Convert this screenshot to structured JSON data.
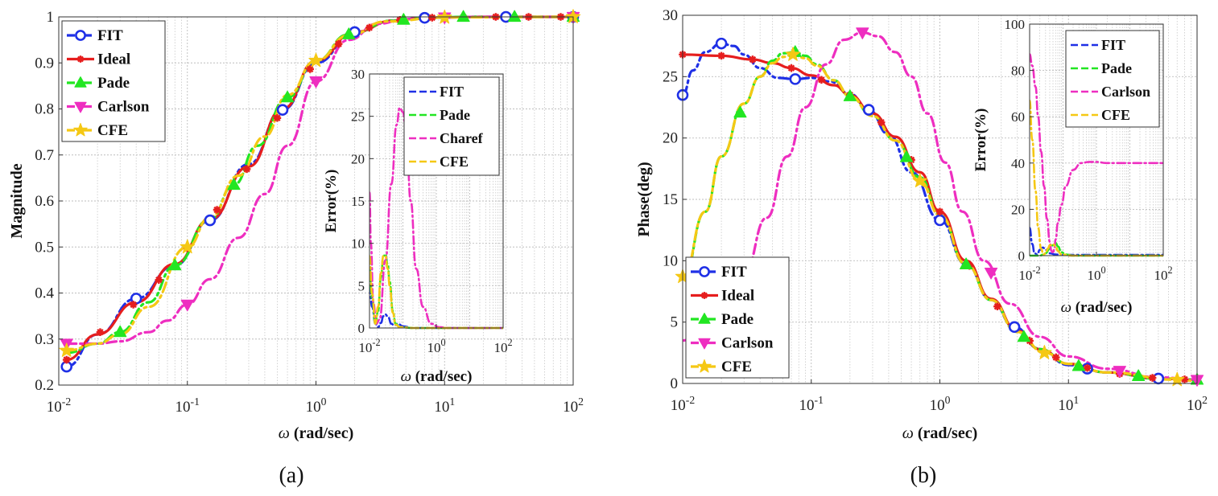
{
  "panel_labels": [
    "(a)",
    "(b)"
  ],
  "chart_data": [
    {
      "id": "a-main",
      "type": "line",
      "xscale": "log",
      "xlim": [
        0.01,
        100
      ],
      "ylim": [
        0.2,
        1
      ],
      "xlabel": "ω (rad/sec)",
      "ylabel": "Magnitude",
      "xticks": [
        "10-2",
        "10-1",
        "100",
        "101",
        "102"
      ],
      "yticks": [
        "0.2",
        "0.3",
        "0.4",
        "0.5",
        "0.6",
        "0.7",
        "0.8",
        "0.9",
        "1"
      ],
      "grid": true,
      "legend_position": "top-left",
      "series": [
        {
          "name": "FIT",
          "color": "#1f30e6",
          "marker": "circle",
          "x": [
            0.0115,
            0.02,
            0.04,
            0.08,
            0.15,
            0.3,
            0.55,
            1.0,
            2.0,
            4.0,
            7.0,
            20,
            100
          ],
          "y": [
            0.24,
            0.31,
            0.388,
            0.46,
            0.558,
            0.68,
            0.798,
            0.9,
            0.967,
            0.992,
            0.998,
            1.0,
            1.0
          ],
          "markers_at": [
            0.0115,
            0.04,
            0.15,
            0.55,
            2.0,
            7.0,
            30,
            100
          ]
        },
        {
          "name": "Ideal",
          "color": "#e61e1e",
          "marker": "star",
          "x": [
            0.0115,
            0.02,
            0.04,
            0.08,
            0.15,
            0.3,
            0.55,
            1.0,
            2.0,
            4.0,
            7.0,
            20,
            100
          ],
          "y": [
            0.255,
            0.31,
            0.38,
            0.463,
            0.56,
            0.675,
            0.8,
            0.905,
            0.967,
            0.992,
            0.998,
            1.0,
            1.0
          ],
          "markers_at": [
            0.0115,
            0.021,
            0.038,
            0.06,
            0.1,
            0.17,
            0.29,
            0.5,
            0.9,
            1.5,
            2.6,
            4.5,
            8,
            14,
            25,
            45,
            80
          ]
        },
        {
          "name": "Pade",
          "color": "#22e622",
          "marker": "triangle-up",
          "x": [
            0.0115,
            0.02,
            0.03,
            0.05,
            0.08,
            0.15,
            0.23,
            0.35,
            0.6,
            1.0,
            1.8,
            4.0,
            8.0,
            14,
            35,
            100
          ],
          "y": [
            0.27,
            0.29,
            0.315,
            0.38,
            0.46,
            0.56,
            0.635,
            0.72,
            0.825,
            0.905,
            0.962,
            0.992,
            0.998,
            1.0,
            1.0,
            1.0
          ],
          "markers_at": [
            0.03,
            0.08,
            0.23,
            0.6,
            1.8,
            4.8,
            14,
            35,
            100
          ]
        },
        {
          "name": "Carlson",
          "color": "#ee2ec0",
          "marker": "triangle-down",
          "x": [
            0.0115,
            0.02,
            0.03,
            0.05,
            0.07,
            0.1,
            0.15,
            0.25,
            0.4,
            0.6,
            1.0,
            1.8,
            3.0,
            5.0,
            10,
            20,
            100
          ],
          "y": [
            0.29,
            0.29,
            0.295,
            0.315,
            0.34,
            0.375,
            0.43,
            0.52,
            0.615,
            0.72,
            0.86,
            0.95,
            0.985,
            0.995,
            0.999,
            1.0,
            1.0
          ],
          "markers_at": [
            0.0115,
            0.1,
            1.0,
            10,
            100
          ]
        },
        {
          "name": "CFE",
          "color": "#f5c814",
          "marker": "star5",
          "x": [
            0.0115,
            0.02,
            0.03,
            0.05,
            0.1,
            0.15,
            0.25,
            0.4,
            0.6,
            1.0,
            1.8,
            3.5,
            10,
            100
          ],
          "y": [
            0.275,
            0.29,
            0.31,
            0.37,
            0.5,
            0.565,
            0.655,
            0.74,
            0.83,
            0.905,
            0.96,
            0.99,
            0.999,
            1.0
          ],
          "markers_at": [
            0.0115,
            0.1,
            1.0,
            10,
            100
          ]
        }
      ]
    },
    {
      "id": "a-inset",
      "type": "line",
      "xscale": "log",
      "xlim": [
        0.01,
        100
      ],
      "ylim": [
        0,
        30
      ],
      "xlabel": "ω (rad/sec)",
      "ylabel": "Error(%)",
      "xticks": [
        "10-2",
        "100",
        "102"
      ],
      "yticks": [
        "0",
        "5",
        "10",
        "15",
        "20",
        "25",
        "30"
      ],
      "grid": true,
      "legend_position": "top-right",
      "series": [
        {
          "name": "FIT",
          "color": "#1f30e6",
          "x": [
            0.01,
            0.012,
            0.015,
            0.018,
            0.022,
            0.026,
            0.03,
            0.036,
            0.045,
            0.055,
            0.07,
            0.1,
            0.2,
            100
          ],
          "y": [
            5,
            2.5,
            0.5,
            0.1,
            0.6,
            1.4,
            1.6,
            1.3,
            0.5,
            0.3,
            0.5,
            0.2,
            0,
            0
          ]
        },
        {
          "name": "Pade",
          "color": "#22e622",
          "x": [
            0.01,
            0.012,
            0.015,
            0.018,
            0.022,
            0.026,
            0.03,
            0.035,
            0.04,
            0.05,
            0.06,
            0.08,
            0.2,
            100
          ],
          "y": [
            7,
            3.5,
            0.5,
            2,
            6,
            8.5,
            8.7,
            7.5,
            5.5,
            2,
            0.5,
            0.1,
            0,
            0
          ]
        },
        {
          "name": "Charef",
          "color": "#ee2ec0",
          "x": [
            0.01,
            0.011,
            0.013,
            0.016,
            0.02,
            0.03,
            0.045,
            0.065,
            0.08,
            0.1,
            0.13,
            0.17,
            0.25,
            0.4,
            0.7,
            1.2,
            2.5,
            5,
            100
          ],
          "y": [
            16,
            10,
            3,
            0.5,
            1,
            8,
            17,
            24,
            26,
            25.5,
            22,
            15,
            7,
            2.5,
            0.5,
            0.1,
            0,
            0,
            0
          ]
        },
        {
          "name": "CFE",
          "color": "#f5c814",
          "x": [
            0.01,
            0.012,
            0.015,
            0.018,
            0.022,
            0.026,
            0.03,
            0.035,
            0.04,
            0.05,
            0.06,
            0.08,
            0.2,
            100
          ],
          "y": [
            8.5,
            4,
            0.5,
            2.5,
            6.5,
            8.5,
            8.5,
            7,
            5,
            1.8,
            0.4,
            0.1,
            0,
            0
          ]
        }
      ]
    },
    {
      "id": "b-main",
      "type": "line",
      "xscale": "log",
      "xlim": [
        0.01,
        100
      ],
      "ylim": [
        0,
        30
      ],
      "xlabel": "ω (rad/sec)",
      "ylabel": "Phase(deg)",
      "xticks": [
        "10-2",
        "10-1",
        "100",
        "101",
        "102"
      ],
      "yticks": [
        "0",
        "5",
        "10",
        "15",
        "20",
        "25",
        "30"
      ],
      "grid": true,
      "legend_position": "bottom-left",
      "series": [
        {
          "name": "FIT",
          "color": "#1f30e6",
          "marker": "circle",
          "x": [
            0.01,
            0.012,
            0.015,
            0.02,
            0.025,
            0.03,
            0.04,
            0.055,
            0.075,
            0.1,
            0.14,
            0.2,
            0.28,
            0.4,
            0.6,
            1.0,
            1.6,
            2.5,
            3.8,
            6,
            10,
            20,
            50,
            100
          ],
          "y": [
            23.5,
            25.5,
            27,
            27.7,
            27.5,
            26.8,
            25.7,
            24.9,
            24.8,
            24.9,
            24.6,
            23.6,
            22.3,
            20.3,
            17.2,
            13.3,
            9.7,
            6.8,
            4.6,
            2.8,
            1.5,
            0.9,
            0.4,
            0.3
          ],
          "markers_at": [
            0.01,
            0.02,
            0.075,
            0.28,
            1.0,
            3.8,
            14,
            50
          ]
        },
        {
          "name": "Ideal",
          "color": "#e61e1e",
          "marker": "star",
          "x": [
            0.01,
            0.02,
            0.035,
            0.05,
            0.07,
            0.1,
            0.15,
            0.2,
            0.3,
            0.45,
            0.7,
            1.0,
            1.6,
            2.5,
            4,
            6,
            10,
            20,
            50,
            100
          ],
          "y": [
            26.8,
            26.7,
            26.4,
            26.1,
            25.7,
            25.1,
            24.3,
            23.5,
            22.0,
            20.1,
            17.2,
            14.0,
            10.0,
            6.9,
            4.3,
            2.8,
            1.6,
            0.9,
            0.4,
            0.3
          ],
          "markers_at": [
            0.01,
            0.02,
            0.035,
            0.07,
            0.12,
            0.2,
            0.35,
            0.6,
            1.0,
            1.7,
            2.8,
            5,
            8,
            14,
            25,
            45,
            80
          ]
        },
        {
          "name": "Pade",
          "color": "#22e622",
          "marker": "triangle-up",
          "x": [
            0.01,
            0.015,
            0.02,
            0.03,
            0.04,
            0.05,
            0.06,
            0.075,
            0.09,
            0.11,
            0.15,
            0.2,
            0.3,
            0.45,
            0.7,
            1.0,
            1.6,
            2.5,
            4,
            6,
            10,
            20,
            50,
            100
          ],
          "y": [
            8.5,
            14,
            18.5,
            22.8,
            25,
            26.3,
            26.9,
            27.0,
            26.7,
            26.0,
            24.7,
            23.4,
            21.8,
            19.8,
            16.8,
            13.7,
            9.7,
            6.8,
            4.2,
            2.8,
            1.6,
            0.9,
            0.4,
            0.3
          ],
          "markers_at": [
            0.028,
            0.075,
            0.2,
            0.55,
            1.6,
            4.5,
            12,
            35,
            100
          ]
        },
        {
          "name": "Carlson",
          "color": "#ee2ec0",
          "marker": "triangle-down",
          "x": [
            0.01,
            0.015,
            0.02,
            0.03,
            0.045,
            0.065,
            0.09,
            0.13,
            0.18,
            0.25,
            0.33,
            0.45,
            0.6,
            0.8,
            1.1,
            1.5,
            2.2,
            3.5,
            6,
            10,
            20,
            50,
            100
          ],
          "y": [
            3.5,
            4.5,
            6,
            9,
            13.5,
            18.5,
            22.5,
            26,
            28,
            28.6,
            28.3,
            27,
            25,
            22,
            18,
            14,
            10,
            6.5,
            3.8,
            2.2,
            1.2,
            0.5,
            0.3
          ],
          "markers_at": [
            0.25,
            2.5,
            25,
            100
          ]
        },
        {
          "name": "CFE",
          "color": "#f5c814",
          "marker": "star5",
          "x": [
            0.01,
            0.015,
            0.02,
            0.03,
            0.04,
            0.05,
            0.06,
            0.072,
            0.09,
            0.11,
            0.15,
            0.2,
            0.3,
            0.45,
            0.7,
            1.0,
            1.6,
            2.5,
            4,
            6.5,
            10,
            20,
            70,
            100
          ],
          "y": [
            8.7,
            14,
            18.5,
            22.8,
            25,
            26.1,
            26.6,
            26.8,
            26.5,
            25.9,
            24.7,
            23.4,
            21.8,
            19.8,
            16.5,
            13.7,
            9.7,
            6.8,
            4.2,
            2.5,
            1.6,
            0.9,
            0.3,
            0.2
          ],
          "markers_at": [
            0.01,
            0.072,
            0.7,
            6.5,
            70
          ]
        }
      ]
    },
    {
      "id": "b-inset",
      "type": "line",
      "xscale": "log",
      "xlim": [
        0.01,
        100
      ],
      "ylim": [
        0,
        100
      ],
      "xlabel": "ω (rad/sec)",
      "ylabel": "Error(%)",
      "xticks": [
        "10-2",
        "100",
        "102"
      ],
      "yticks": [
        "0",
        "20",
        "40",
        "60",
        "80",
        "100"
      ],
      "grid": true,
      "legend_position": "top-right",
      "series": [
        {
          "name": "FIT",
          "color": "#1f30e6",
          "x": [
            0.01,
            0.012,
            0.014,
            0.017,
            0.02,
            0.025,
            0.03,
            0.04,
            0.06,
            0.1,
            0.3,
            100
          ],
          "y": [
            12,
            5,
            1,
            0.5,
            2.5,
            3.5,
            2.5,
            1,
            0.5,
            0.3,
            0.3,
            0.3
          ]
        },
        {
          "name": "Pade",
          "color": "#22e622",
          "x": [
            0.01,
            0.02,
            0.03,
            0.04,
            0.05,
            0.06,
            0.07,
            0.09,
            0.12,
            0.2,
            100
          ],
          "y": [
            0,
            0,
            1,
            3,
            4.5,
            5.5,
            4,
            1.5,
            0.5,
            0,
            0
          ]
        },
        {
          "name": "Carlson",
          "color": "#ee2ec0",
          "x": [
            0.01,
            0.012,
            0.015,
            0.018,
            0.022,
            0.027,
            0.033,
            0.04,
            0.045,
            0.05,
            0.055,
            0.06,
            0.07,
            0.09,
            0.12,
            0.2,
            0.35,
            0.6,
            1.0,
            2.0,
            5.0,
            100
          ],
          "y": [
            87,
            82,
            73,
            60,
            45,
            30,
            16,
            6,
            2,
            1,
            3,
            7,
            14,
            22,
            30,
            37,
            40,
            40.5,
            40.5,
            40,
            40,
            40
          ]
        },
        {
          "name": "CFE",
          "color": "#f5c814",
          "x": [
            0.01,
            0.012,
            0.015,
            0.018,
            0.022,
            0.026,
            0.03,
            0.035,
            0.04,
            0.05,
            0.06,
            0.07,
            0.09,
            0.2,
            100
          ],
          "y": [
            67,
            50,
            28,
            12,
            3,
            0.5,
            1,
            3,
            4.5,
            5,
            4,
            2,
            0.5,
            0,
            0
          ]
        }
      ]
    }
  ]
}
